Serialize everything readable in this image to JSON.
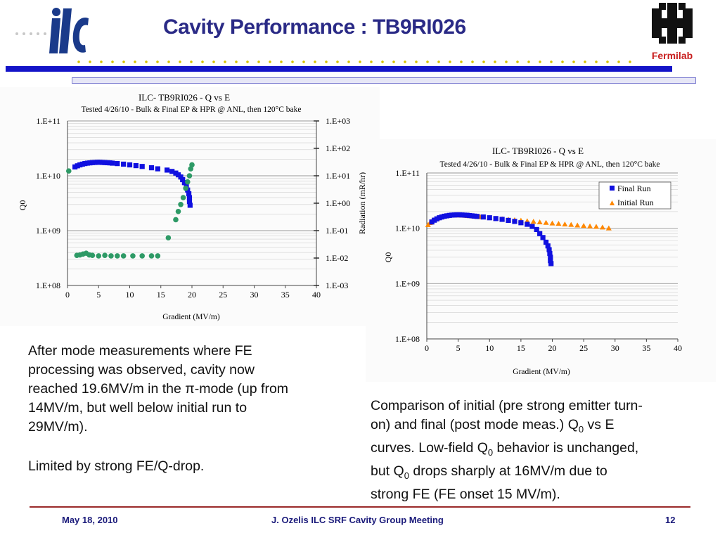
{
  "header": {
    "title": "Cavity Performance : TB9RI026",
    "left_logo_text": "ilc",
    "right_logo_text": "Fermilab"
  },
  "colors": {
    "title": "#2a2a86",
    "header_bar": "#1414c8",
    "dots": "#d8c300",
    "final_run": "#1010e0",
    "initial_run": "#ff8800",
    "radiation": "#2e9a66",
    "footer_line": "#9a2a2a"
  },
  "chart_data": [
    {
      "type": "scatter",
      "title": "ILC- TB9RI026 - Q vs E",
      "subtitle": "Tested 4/26/10 - Bulk & Final EP & HPR @ ANL,  then 120°C bake",
      "xlabel": "Gradient (MV/m)",
      "ylabel": "Q0",
      "y2label": "Radiation (mR/hr)",
      "xlim": [
        0,
        40
      ],
      "ylim": [
        100000000.0,
        100000000000.0
      ],
      "y2lim": [
        0.001,
        1000
      ],
      "yscale": "log",
      "x_ticks": [
        "0",
        "5",
        "10",
        "15",
        "20",
        "25",
        "30",
        "35",
        "40"
      ],
      "y_ticks": [
        "1.E+08",
        "1.E+09",
        "1.E+10",
        "1.E+11"
      ],
      "y2_ticks": [
        "1.E-03",
        "1.E-02",
        "1.E-01",
        "1.E+00",
        "1.E+01",
        "1.E+02",
        "1.E+03"
      ],
      "grid": true,
      "series": [
        {
          "axis": "left",
          "marker": "square",
          "x": [
            1.2,
            1.6,
            2.0,
            2.4,
            2.8,
            3.2,
            3.6,
            4.0,
            4.4,
            4.8,
            5.2,
            5.6,
            6.0,
            6.4,
            6.8,
            7.2,
            8.0,
            9.0,
            10.0,
            11.0,
            12.0,
            13.5,
            14.5,
            16.0,
            16.8,
            17.4,
            17.8,
            18.2,
            18.5,
            18.8,
            19.1,
            19.3,
            19.5,
            19.6,
            19.6,
            19.7
          ],
          "y": [
            14500000000.0,
            15200000000.0,
            15800000000.0,
            16300000000.0,
            16700000000.0,
            17000000000.0,
            17200000000.0,
            17400000000.0,
            17500000000.0,
            17600000000.0,
            17600000000.0,
            17500000000.0,
            17400000000.0,
            17300000000.0,
            17200000000.0,
            17000000000.0,
            16700000000.0,
            16300000000.0,
            15800000000.0,
            15300000000.0,
            14800000000.0,
            14000000000.0,
            13400000000.0,
            12700000000.0,
            12000000000.0,
            11200000000.0,
            10400000000.0,
            9500000000.0,
            8500000000.0,
            7500000000.0,
            6500000000.0,
            5500000000.0,
            4700000000.0,
            4000000000.0,
            3400000000.0,
            2900000000.0
          ]
        },
        {
          "axis": "right",
          "marker": "circle",
          "x": [
            0.2,
            1.5,
            2.0,
            2.5,
            3.0,
            3.5,
            4.0,
            5.0,
            6.0,
            7.0,
            8.0,
            9.0,
            10.5,
            12.0,
            13.5,
            14.5,
            16.2,
            17.4,
            17.8,
            18.2,
            18.6,
            19.0,
            19.3,
            19.6,
            19.8,
            20.0
          ],
          "y": [
            15,
            0.0125,
            0.013,
            0.014,
            0.015,
            0.013,
            0.0125,
            0.012,
            0.0125,
            0.012,
            0.012,
            0.012,
            0.012,
            0.012,
            0.012,
            0.012,
            0.055,
            0.25,
            0.5,
            0.9,
            1.6,
            3.5,
            6,
            10,
            18,
            25
          ]
        }
      ]
    },
    {
      "type": "scatter",
      "title": "ILC- TB9RI026 - Q vs E",
      "subtitle": "Tested 4/26/10 - Bulk & Final EP & HPR @ ANL,  then 120°C bake",
      "xlabel": "Gradient (MV/m)",
      "ylabel": "Q0",
      "xlim": [
        0,
        40
      ],
      "ylim": [
        100000000.0,
        100000000000.0
      ],
      "yscale": "log",
      "x_ticks": [
        "0",
        "5",
        "10",
        "15",
        "20",
        "25",
        "30",
        "35",
        "40"
      ],
      "y_ticks": [
        "1.E+08",
        "1.E+09",
        "1.E+10",
        "1.E+11"
      ],
      "grid": true,
      "legend_position": "top-right",
      "series": [
        {
          "name": "Final Run",
          "marker": "square",
          "x": [
            0.8,
            1.2,
            1.6,
            2.0,
            2.4,
            2.8,
            3.2,
            3.6,
            4.0,
            4.4,
            4.8,
            5.2,
            5.6,
            6.0,
            6.4,
            6.8,
            7.2,
            7.6,
            8.0,
            9.0,
            10.0,
            11.0,
            12.0,
            13.0,
            14.0,
            15.0,
            16.0,
            16.8,
            17.5,
            18.0,
            18.5,
            19.0,
            19.3,
            19.5,
            19.6,
            19.7,
            19.7,
            19.8
          ],
          "y": [
            13000000000.0,
            14000000000.0,
            14800000000.0,
            15500000000.0,
            16000000000.0,
            16500000000.0,
            16800000000.0,
            17100000000.0,
            17300000000.0,
            17400000000.0,
            17500000000.0,
            17500000000.0,
            17400000000.0,
            17300000000.0,
            17200000000.0,
            17000000000.0,
            16800000000.0,
            16600000000.0,
            16400000000.0,
            16000000000.0,
            15500000000.0,
            15000000000.0,
            14500000000.0,
            13900000000.0,
            13300000000.0,
            12600000000.0,
            11800000000.0,
            10800000000.0,
            9500000000.0,
            8000000000.0,
            6800000000.0,
            5600000000.0,
            4800000000.0,
            4100000000.0,
            3500000000.0,
            3000000000.0,
            2600000000.0,
            2300000000.0
          ]
        },
        {
          "name": "Initial Run",
          "marker": "triangle",
          "x": [
            0.2,
            0.5,
            0.8,
            1.1,
            1.4,
            1.7,
            2.0,
            2.3,
            2.6,
            2.9,
            3.2,
            3.5,
            3.8,
            4.1,
            4.4,
            4.7,
            5.0,
            5.3,
            5.6,
            5.9,
            6.2,
            6.5,
            6.8,
            7.1,
            7.5,
            8.0,
            8.5,
            9.0,
            10.0,
            11.0,
            12.0,
            13.0,
            14.0,
            15.0,
            16.0,
            17.0,
            18.0,
            19.0,
            20.0,
            21.0,
            22.0,
            23.0,
            24.0,
            25.0,
            26.0,
            27.0,
            28.0,
            29.0
          ],
          "y": [
            11500000000.0,
            12500000000.0,
            13300000000.0,
            14000000000.0,
            14600000000.0,
            15100000000.0,
            15500000000.0,
            15900000000.0,
            16200000000.0,
            16500000000.0,
            16700000000.0,
            16900000000.0,
            17000000000.0,
            17100000000.0,
            17200000000.0,
            17200000000.0,
            17200000000.0,
            17200000000.0,
            17100000000.0,
            17000000000.0,
            16900000000.0,
            16800000000.0,
            16700000000.0,
            16600000000.0,
            16400000000.0,
            16200000000.0,
            16000000000.0,
            15800000000.0,
            15400000000.0,
            15000000000.0,
            14700000000.0,
            14400000000.0,
            14100000000.0,
            13800000000.0,
            13500000000.0,
            13200000000.0,
            12900000000.0,
            12600000000.0,
            12300000000.0,
            12100000000.0,
            11800000000.0,
            11600000000.0,
            11300000000.0,
            11100000000.0,
            10900000000.0,
            10700000000.0,
            10400000000.0,
            10000000000.0
          ]
        }
      ]
    }
  ],
  "text": {
    "left_paragraph_1a": "After mode measurements where FE",
    "left_paragraph_1b": "processing was observed, cavity now",
    "left_paragraph_1c": "reached 19.6MV/m in the π-mode (up from",
    "left_paragraph_1d": "14MV/m, but well below initial run to",
    "left_paragraph_1e": "29MV/m).",
    "left_paragraph_2": "Limited by strong FE/Q-drop.",
    "right_line_1": "Comparison of initial (pre strong emitter turn-",
    "right_line_2_pre": "on) and final (post mode meas.) Q",
    "right_line_2_sub": "0",
    "right_line_2_post": " vs E",
    "right_line_3_pre": "curves. Low-field Q",
    "right_line_3_sub": "0",
    "right_line_3_post": " behavior is unchanged,",
    "right_line_4_pre": "but Q",
    "right_line_4_sub": "0",
    "right_line_4_post": " drops sharply at 16MV/m due to",
    "right_line_5": "strong FE (FE onset 15 MV/m)."
  },
  "footer": {
    "date": "May 18,  2010",
    "center": "J. Ozelis  ILC SRF Cavity Group Meeting",
    "page": "12"
  }
}
